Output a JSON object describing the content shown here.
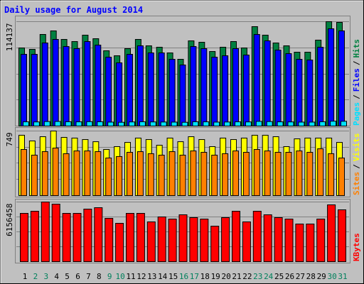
{
  "chart_data": [
    {
      "type": "bar",
      "title": "Daily usage for August 2014",
      "legend_separator": "/",
      "ylim": [
        0,
        114137
      ],
      "yticks": [
        {
          "value": 28534,
          "label": null
        },
        {
          "value": 57068,
          "label": null
        },
        {
          "value": 85603,
          "label": null
        },
        114137
      ],
      "series": [
        {
          "name": "Hits",
          "color": "#008040",
          "values": [
            85400,
            83850,
            100160,
            104040,
            94720,
            92390,
            99380,
            95500,
            82300,
            76860,
            84630,
            94720,
            87730,
            86180,
            79970,
            72980,
            93170,
            91620,
            81520,
            86180,
            92390,
            85400,
            108700,
            99380,
            90840,
            87730,
            80750,
            80750,
            93940,
            114137,
            113360
          ]
        },
        {
          "name": "Files",
          "color": "#0000ff",
          "values": [
            78420,
            78420,
            90840,
            94720,
            86960,
            84630,
            92390,
            88510,
            75310,
            69100,
            78420,
            87730,
            79970,
            79970,
            72980,
            66770,
            86960,
            84630,
            75310,
            76860,
            84630,
            77640,
            100160,
            93170,
            83070,
            79190,
            72980,
            72210,
            86180,
            106370,
            104040
          ]
        },
        {
          "name": "Pages",
          "color": "#00e0ff",
          "values": [
            4600,
            4500,
            4900,
            5000,
            4700,
            4600,
            4800,
            4700,
            4300,
            4100,
            4500,
            4700,
            4500,
            4400,
            4300,
            4100,
            4700,
            4600,
            4300,
            4400,
            4600,
            4500,
            5100,
            4900,
            4600,
            4500,
            4300,
            4300,
            4700,
            5300,
            5200
          ]
        }
      ]
    },
    {
      "type": "bar",
      "legend_separator": "/",
      "ylim": [
        0,
        749
      ],
      "yticks": [
        {
          "value": 187,
          "label": null
        },
        {
          "value": 375,
          "label": null
        },
        {
          "value": 562,
          "label": null
        },
        749
      ],
      "series": [
        {
          "name": "Visits",
          "color": "#ffff00",
          "values": [
            700,
            634,
            683,
            749,
            675,
            667,
            650,
            625,
            535,
            568,
            617,
            667,
            650,
            584,
            667,
            625,
            683,
            650,
            568,
            667,
            650,
            667,
            700,
            700,
            683,
            568,
            658,
            667,
            667,
            667,
            617
          ]
        },
        {
          "name": "Sites",
          "color": "#ff8000",
          "values": [
            535,
            469,
            510,
            551,
            486,
            518,
            518,
            510,
            436,
            453,
            502,
            510,
            486,
            469,
            510,
            469,
            518,
            502,
            469,
            486,
            518,
            502,
            535,
            518,
            502,
            502,
            518,
            502,
            543,
            486,
            436
          ]
        }
      ]
    },
    {
      "type": "bar",
      "legend_separator": "/",
      "ylim": [
        0,
        6156458
      ],
      "yticks": [
        {
          "value": 1539114,
          "label": null
        },
        {
          "value": 3078229,
          "label": null
        },
        {
          "value": 4617343,
          "label": null
        },
        6156458
      ],
      "categories": [
        "1",
        "2",
        "3",
        "4",
        "5",
        "6",
        "7",
        "8",
        "9",
        "10",
        "11",
        "12",
        "13",
        "14",
        "15",
        "16",
        "17",
        "18",
        "19",
        "20",
        "21",
        "22",
        "23",
        "24",
        "25",
        "26",
        "27",
        "28",
        "29",
        "30",
        "31"
      ],
      "category_colors": [
        "#000000",
        "#00805c",
        "#00805c",
        "#000000",
        "#000000",
        "#000000",
        "#000000",
        "#000000",
        "#00805c",
        "#00805c",
        "#000000",
        "#000000",
        "#000000",
        "#000000",
        "#000000",
        "#00805c",
        "#00805c",
        "#000000",
        "#000000",
        "#000000",
        "#000000",
        "#000000",
        "#00805c",
        "#00805c",
        "#000000",
        "#000000",
        "#000000",
        "#000000",
        "#000000",
        "#00805c",
        "#00805c"
      ],
      "series": [
        {
          "name": "KBytes",
          "color": "#ff0000",
          "values": [
            4983800,
            5203700,
            6156458,
            5936600,
            4983800,
            4983800,
            5423500,
            5570100,
            4470800,
            3957700,
            4983800,
            4983800,
            4104300,
            4617300,
            4397500,
            4837200,
            4544000,
            4397500,
            3664600,
            4544000,
            5203700,
            4104300,
            5203700,
            4837200,
            4544000,
            4397500,
            3884400,
            3884400,
            4397500,
            5863300,
            5350200
          ]
        }
      ]
    }
  ]
}
